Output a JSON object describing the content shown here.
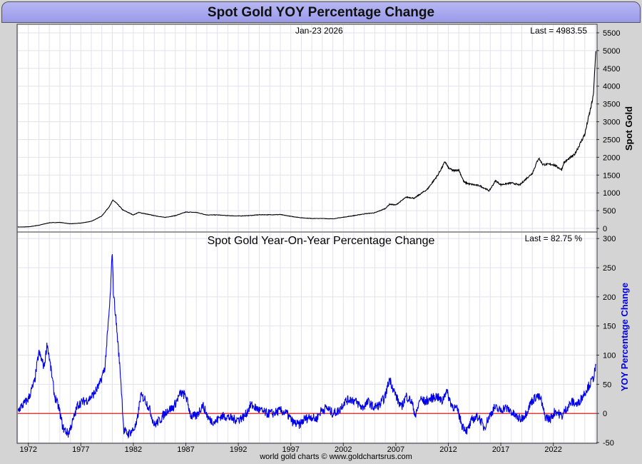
{
  "page_title": "Spot Gold YOY Percentage Change",
  "footer_credit": "world gold charts © www.goldchartsrus.com",
  "colors": {
    "price_line": "#000000",
    "yoy_line": "#0000ee",
    "zero_line": "#dd0000",
    "grid": "#e2e2ee",
    "title_bg": "#a8a8f0"
  },
  "chart_data": [
    {
      "type": "line",
      "title": "",
      "date_label": "Jan-23  2026",
      "last_label": "Last = 4983.55",
      "ylabel": "Spot Gold",
      "xlabel": "",
      "ylim": [
        -80,
        5720
      ],
      "yticks": [
        0,
        500,
        1000,
        1500,
        2000,
        2500,
        3000,
        3500,
        4000,
        4500,
        5000,
        5500
      ],
      "series": [
        {
          "name": "Spot Gold",
          "x": [
            1971.0,
            1972.0,
            1973.0,
            1974.0,
            1975.0,
            1976.0,
            1977.0,
            1978.0,
            1979.0,
            1979.8,
            1980.05,
            1980.5,
            1981.0,
            1982.0,
            1982.5,
            1983.0,
            1984.0,
            1985.0,
            1986.0,
            1987.0,
            1988.0,
            1989.0,
            1990.0,
            1991.0,
            1992.0,
            1993.0,
            1994.0,
            1995.0,
            1996.0,
            1997.0,
            1998.0,
            1999.0,
            2000.0,
            2001.0,
            2002.0,
            2003.0,
            2004.0,
            2005.0,
            2006.0,
            2006.4,
            2007.0,
            2008.0,
            2008.8,
            2009.0,
            2010.0,
            2011.0,
            2011.7,
            2012.0,
            2012.5,
            2013.0,
            2013.5,
            2014.0,
            2015.0,
            2015.9,
            2016.5,
            2017.0,
            2018.0,
            2018.8,
            2019.5,
            2020.0,
            2020.6,
            2021.0,
            2022.0,
            2022.8,
            2023.0,
            2024.0,
            2024.5,
            2025.0,
            2025.5,
            2025.8,
            2026.06
          ],
          "values": [
            40,
            45,
            90,
            160,
            170,
            130,
            150,
            200,
            350,
            650,
            800,
            680,
            520,
            380,
            450,
            420,
            360,
            310,
            360,
            460,
            450,
            380,
            380,
            360,
            350,
            360,
            385,
            385,
            390,
            340,
            300,
            280,
            280,
            270,
            315,
            360,
            410,
            440,
            560,
            680,
            660,
            880,
            850,
            900,
            1100,
            1500,
            1880,
            1700,
            1620,
            1650,
            1300,
            1250,
            1200,
            1060,
            1340,
            1230,
            1280,
            1220,
            1420,
            1550,
            1980,
            1800,
            1800,
            1650,
            1850,
            2070,
            2350,
            2650,
            3300,
            3700,
            4983.55
          ]
        }
      ],
      "last_value": 4983.55
    },
    {
      "type": "line",
      "title": "Spot Gold Year-On-Year Percentage Change",
      "last_label": "Last = 82.75 %",
      "ylabel": "YOY Percentage Change",
      "xlabel": "",
      "ylim": [
        -50,
        310
      ],
      "yticks": [
        -50,
        0,
        50,
        100,
        150,
        200,
        250,
        300
      ],
      "xticks": [
        1972,
        1977,
        1982,
        1987,
        1992,
        1997,
        2002,
        2007,
        2012,
        2017,
        2022
      ],
      "series": [
        {
          "name": "YOY Percentage Change",
          "x": [
            1971.0,
            1971.5,
            1972.0,
            1972.6,
            1973.0,
            1973.5,
            1973.8,
            1974.2,
            1974.5,
            1974.9,
            1975.3,
            1975.8,
            1976.3,
            1976.7,
            1977.2,
            1977.8,
            1978.3,
            1978.8,
            1979.3,
            1979.6,
            1979.8,
            1980.0,
            1980.1,
            1980.4,
            1980.8,
            1981.1,
            1981.5,
            1981.9,
            1982.3,
            1982.7,
            1983.1,
            1983.6,
            1984.0,
            1984.6,
            1985.2,
            1985.8,
            1986.5,
            1987.0,
            1987.5,
            1988.0,
            1988.6,
            1989.2,
            1989.8,
            1990.3,
            1990.9,
            1991.5,
            1992.0,
            1992.6,
            1993.2,
            1993.6,
            1994.1,
            1994.7,
            1995.3,
            1996.0,
            1996.6,
            1997.2,
            1997.8,
            1998.3,
            1998.9,
            1999.4,
            1999.9,
            2000.4,
            2001.0,
            2001.6,
            2002.1,
            2002.7,
            2003.2,
            2003.8,
            2004.4,
            2004.9,
            2005.5,
            2006.0,
            2006.4,
            2006.9,
            2007.5,
            2008.0,
            2008.5,
            2008.9,
            2009.3,
            2009.8,
            2010.3,
            2010.9,
            2011.4,
            2011.8,
            2012.3,
            2012.9,
            2013.3,
            2013.8,
            2014.3,
            2014.9,
            2015.4,
            2015.9,
            2016.4,
            2016.9,
            2017.4,
            2017.9,
            2018.4,
            2018.9,
            2019.4,
            2019.9,
            2020.4,
            2020.8,
            2021.2,
            2021.7,
            2022.2,
            2022.8,
            2023.3,
            2023.8,
            2024.3,
            2024.8,
            2025.3,
            2025.8,
            2026.06
          ],
          "values": [
            5,
            15,
            25,
            55,
            105,
            80,
            120,
            70,
            30,
            10,
            -25,
            -35,
            -10,
            15,
            20,
            25,
            35,
            50,
            80,
            150,
            200,
            280,
            210,
            150,
            60,
            -30,
            -35,
            -30,
            -20,
            30,
            25,
            5,
            -20,
            -10,
            5,
            10,
            35,
            30,
            -5,
            -5,
            15,
            -10,
            -15,
            -5,
            -5,
            -10,
            -10,
            -5,
            15,
            10,
            5,
            0,
            0,
            5,
            0,
            -15,
            -20,
            -10,
            -5,
            -10,
            5,
            10,
            0,
            5,
            20,
            25,
            20,
            10,
            20,
            10,
            15,
            30,
            60,
            35,
            10,
            30,
            20,
            -5,
            25,
            20,
            25,
            30,
            20,
            40,
            15,
            5,
            -20,
            -30,
            -10,
            -5,
            -25,
            -5,
            10,
            5,
            10,
            5,
            -5,
            -10,
            0,
            20,
            30,
            25,
            -5,
            -10,
            5,
            -5,
            10,
            20,
            15,
            30,
            45,
            60,
            82.75
          ]
        }
      ],
      "last_value": 82.75
    }
  ]
}
